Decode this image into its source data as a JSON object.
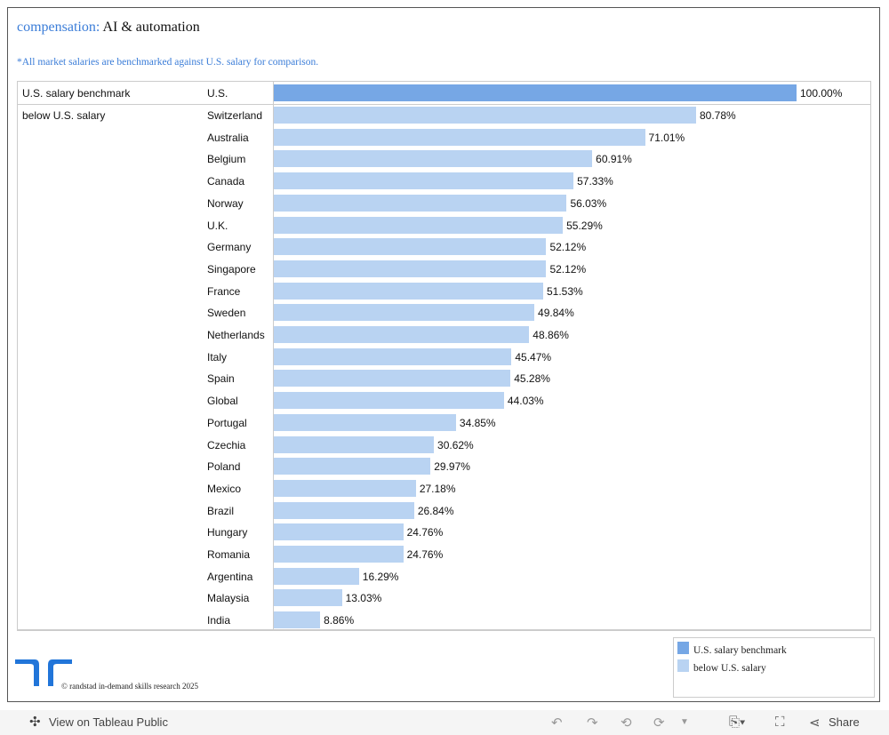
{
  "header": {
    "title_accent": "compensation:",
    "title_rest": "AI & automation",
    "note": "*All market salaries are benchmarked against U.S. salary for comparison."
  },
  "chart_data": {
    "type": "bar",
    "orientation": "horizontal",
    "groups": [
      {
        "name": "U.S. salary benchmark",
        "color": "#76a7e5",
        "categories": [
          "U.S."
        ],
        "values": [
          100.0
        ]
      },
      {
        "name": "below U.S. salary",
        "color": "#b9d3f2",
        "categories": [
          "Switzerland",
          "Australia",
          "Belgium",
          "Canada",
          "Norway",
          "U.K.",
          "Germany",
          "Singapore",
          "France",
          "Sweden",
          "Netherlands",
          "Italy",
          "Spain",
          "Global",
          "Portugal",
          "Czechia",
          "Poland",
          "Mexico",
          "Brazil",
          "Hungary",
          "Romania",
          "Argentina",
          "Malaysia",
          "India"
        ],
        "values": [
          80.78,
          71.01,
          60.91,
          57.33,
          56.03,
          55.29,
          52.12,
          52.12,
          51.53,
          49.84,
          48.86,
          45.47,
          45.28,
          44.03,
          34.85,
          30.62,
          29.97,
          27.18,
          26.84,
          24.76,
          24.76,
          16.29,
          13.03,
          8.86
        ]
      }
    ],
    "value_format": "percent",
    "xlim": [
      0,
      100
    ],
    "grid": false,
    "legend": "bottom-right",
    "legend_entries": [
      "U.S. salary benchmark",
      "below U.S. salary"
    ]
  },
  "footer": {
    "copyright": "© randstad in-demand skills research 2025"
  },
  "toolbar": {
    "view_label": "View on Tableau Public",
    "share_label": "Share"
  }
}
